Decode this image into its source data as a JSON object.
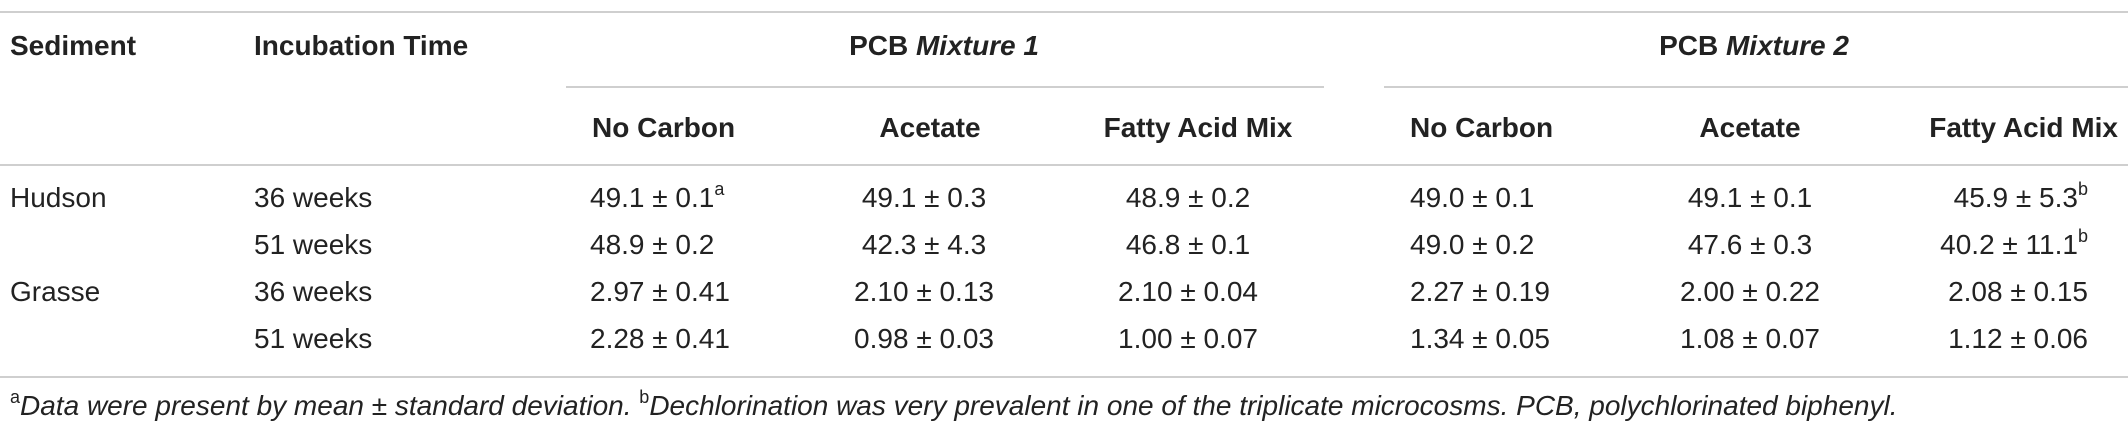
{
  "headers": {
    "sediment": "Sediment",
    "incubation_time": "Incubation Time",
    "group1": {
      "prefix": "PCB ",
      "name": "Mixture 1"
    },
    "group2": {
      "prefix": "PCB ",
      "name": "Mixture 2"
    },
    "sub": [
      "No Carbon",
      "Acetate",
      "Fatty Acid Mix",
      "No Carbon",
      "Acetate",
      "Fatty Acid Mix"
    ]
  },
  "rows": [
    {
      "sediment": "Hudson",
      "time": "36 weeks",
      "values": [
        "49.1 ± 0.1",
        "49.1 ± 0.3",
        "48.9 ± 0.2",
        "49.0 ± 0.1",
        "49.1 ± 0.1",
        "45.9 ± 5.3"
      ],
      "sups": [
        "a",
        "",
        "",
        "",
        "",
        "b"
      ]
    },
    {
      "sediment": "",
      "time": "51 weeks",
      "values": [
        "48.9 ± 0.2",
        "42.3 ± 4.3",
        "46.8 ± 0.1",
        "49.0 ± 0.2",
        "47.6 ± 0.3",
        "40.2 ± 11.1"
      ],
      "sups": [
        "",
        "",
        "",
        "",
        "",
        "b"
      ]
    },
    {
      "sediment": "Grasse",
      "time": "36 weeks",
      "values": [
        "2.97 ± 0.41",
        "2.10 ± 0.13",
        "2.10 ± 0.04",
        "2.27 ± 0.19",
        "2.00 ± 0.22",
        "2.08 ± 0.15"
      ],
      "sups": [
        "",
        "",
        "",
        "",
        "",
        ""
      ]
    },
    {
      "sediment": "",
      "time": "51 weeks",
      "values": [
        "2.28 ± 0.41",
        "0.98 ± 0.03",
        "1.00 ± 0.07",
        "1.34 ± 0.05",
        "1.08 ± 0.07",
        "1.12 ± 0.06"
      ],
      "sups": [
        "",
        "",
        "",
        "",
        "",
        ""
      ]
    }
  ],
  "footnote": {
    "a_mark": "a",
    "a_text": "Data were present by mean ± standard deviation. ",
    "b_mark": "b",
    "b_text": "Dechlorination was very prevalent in one of the triplicate microcosms. PCB, polychlorinated biphenyl."
  }
}
